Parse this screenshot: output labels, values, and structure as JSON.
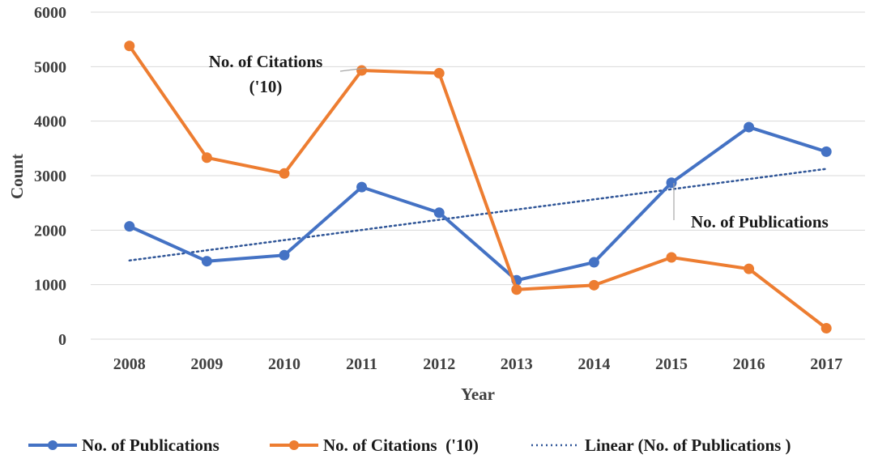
{
  "chart_data": {
    "type": "line",
    "title": "",
    "xlabel": "Year",
    "ylabel": "Count",
    "ylim": [
      0,
      6000
    ],
    "yticks": [
      0,
      1000,
      2000,
      3000,
      4000,
      5000,
      6000
    ],
    "ytick_labels": [
      "0",
      "1000",
      "2000",
      "3000",
      "4000",
      "5000",
      "6000"
    ],
    "grid": true,
    "categories": [
      "2008",
      "2009",
      "2010",
      "2011",
      "2012",
      "2013",
      "2014",
      "2015",
      "2016",
      "2017"
    ],
    "series": [
      {
        "name": "No. of Publications",
        "color": "#4472C4",
        "values": [
          2070,
          1430,
          1540,
          2790,
          2320,
          1080,
          1410,
          2870,
          3890,
          3440
        ]
      },
      {
        "name": "No. of Citations  ('10)",
        "color": "#ED7D31",
        "values": [
          5380,
          3330,
          3040,
          4930,
          4880,
          910,
          990,
          1500,
          1290,
          200
        ]
      }
    ],
    "trendline": {
      "name": "Linear (No. of Publications )",
      "color": "#2F5597",
      "of_series": "No. of Publications"
    },
    "annotations": [
      {
        "line1": "No. of Citations",
        "line2": "('10)",
        "points_to": "2011"
      },
      {
        "text": "No. of Publications",
        "points_to": "2015"
      }
    ],
    "legend_position": "bottom"
  }
}
